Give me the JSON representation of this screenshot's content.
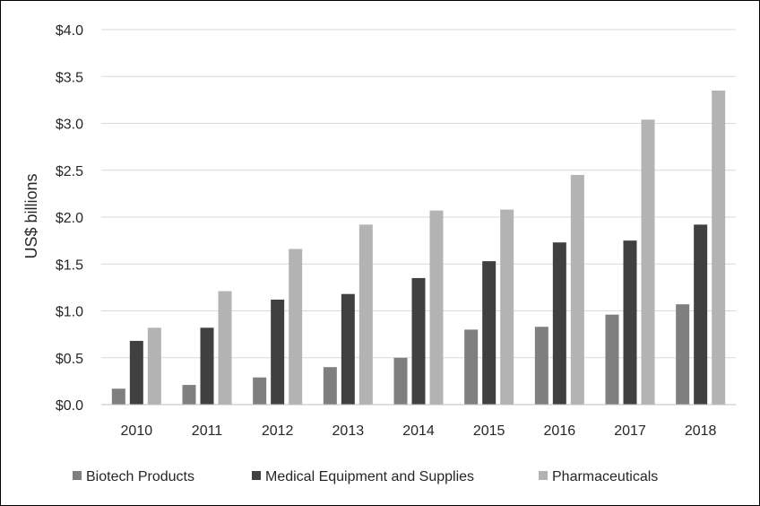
{
  "chart_data": {
    "type": "bar",
    "title": "",
    "xlabel": "",
    "ylabel": "US$ billions",
    "categories": [
      "2010",
      "2011",
      "2012",
      "2013",
      "2014",
      "2015",
      "2016",
      "2017",
      "2018"
    ],
    "series": [
      {
        "name": "Biotech Products",
        "color": "#7f7f7f",
        "values": [
          0.17,
          0.21,
          0.29,
          0.4,
          0.5,
          0.8,
          0.83,
          0.96,
          1.07
        ]
      },
      {
        "name": "Medical Equipment and Supplies",
        "color": "#404040",
        "values": [
          0.68,
          0.82,
          1.12,
          1.18,
          1.35,
          1.53,
          1.73,
          1.75,
          1.92
        ]
      },
      {
        "name": "Pharmaceuticals",
        "color": "#b3b3b3",
        "values": [
          0.82,
          1.21,
          1.66,
          1.92,
          2.07,
          2.08,
          2.45,
          3.04,
          3.35
        ]
      }
    ],
    "yticks": [
      "$0.0",
      "$0.5",
      "$1.0",
      "$1.5",
      "$2.0",
      "$2.5",
      "$3.0",
      "$3.5",
      "$4.0"
    ],
    "ylim": [
      0,
      4.0
    ],
    "grid": true,
    "legend_position": "bottom"
  }
}
